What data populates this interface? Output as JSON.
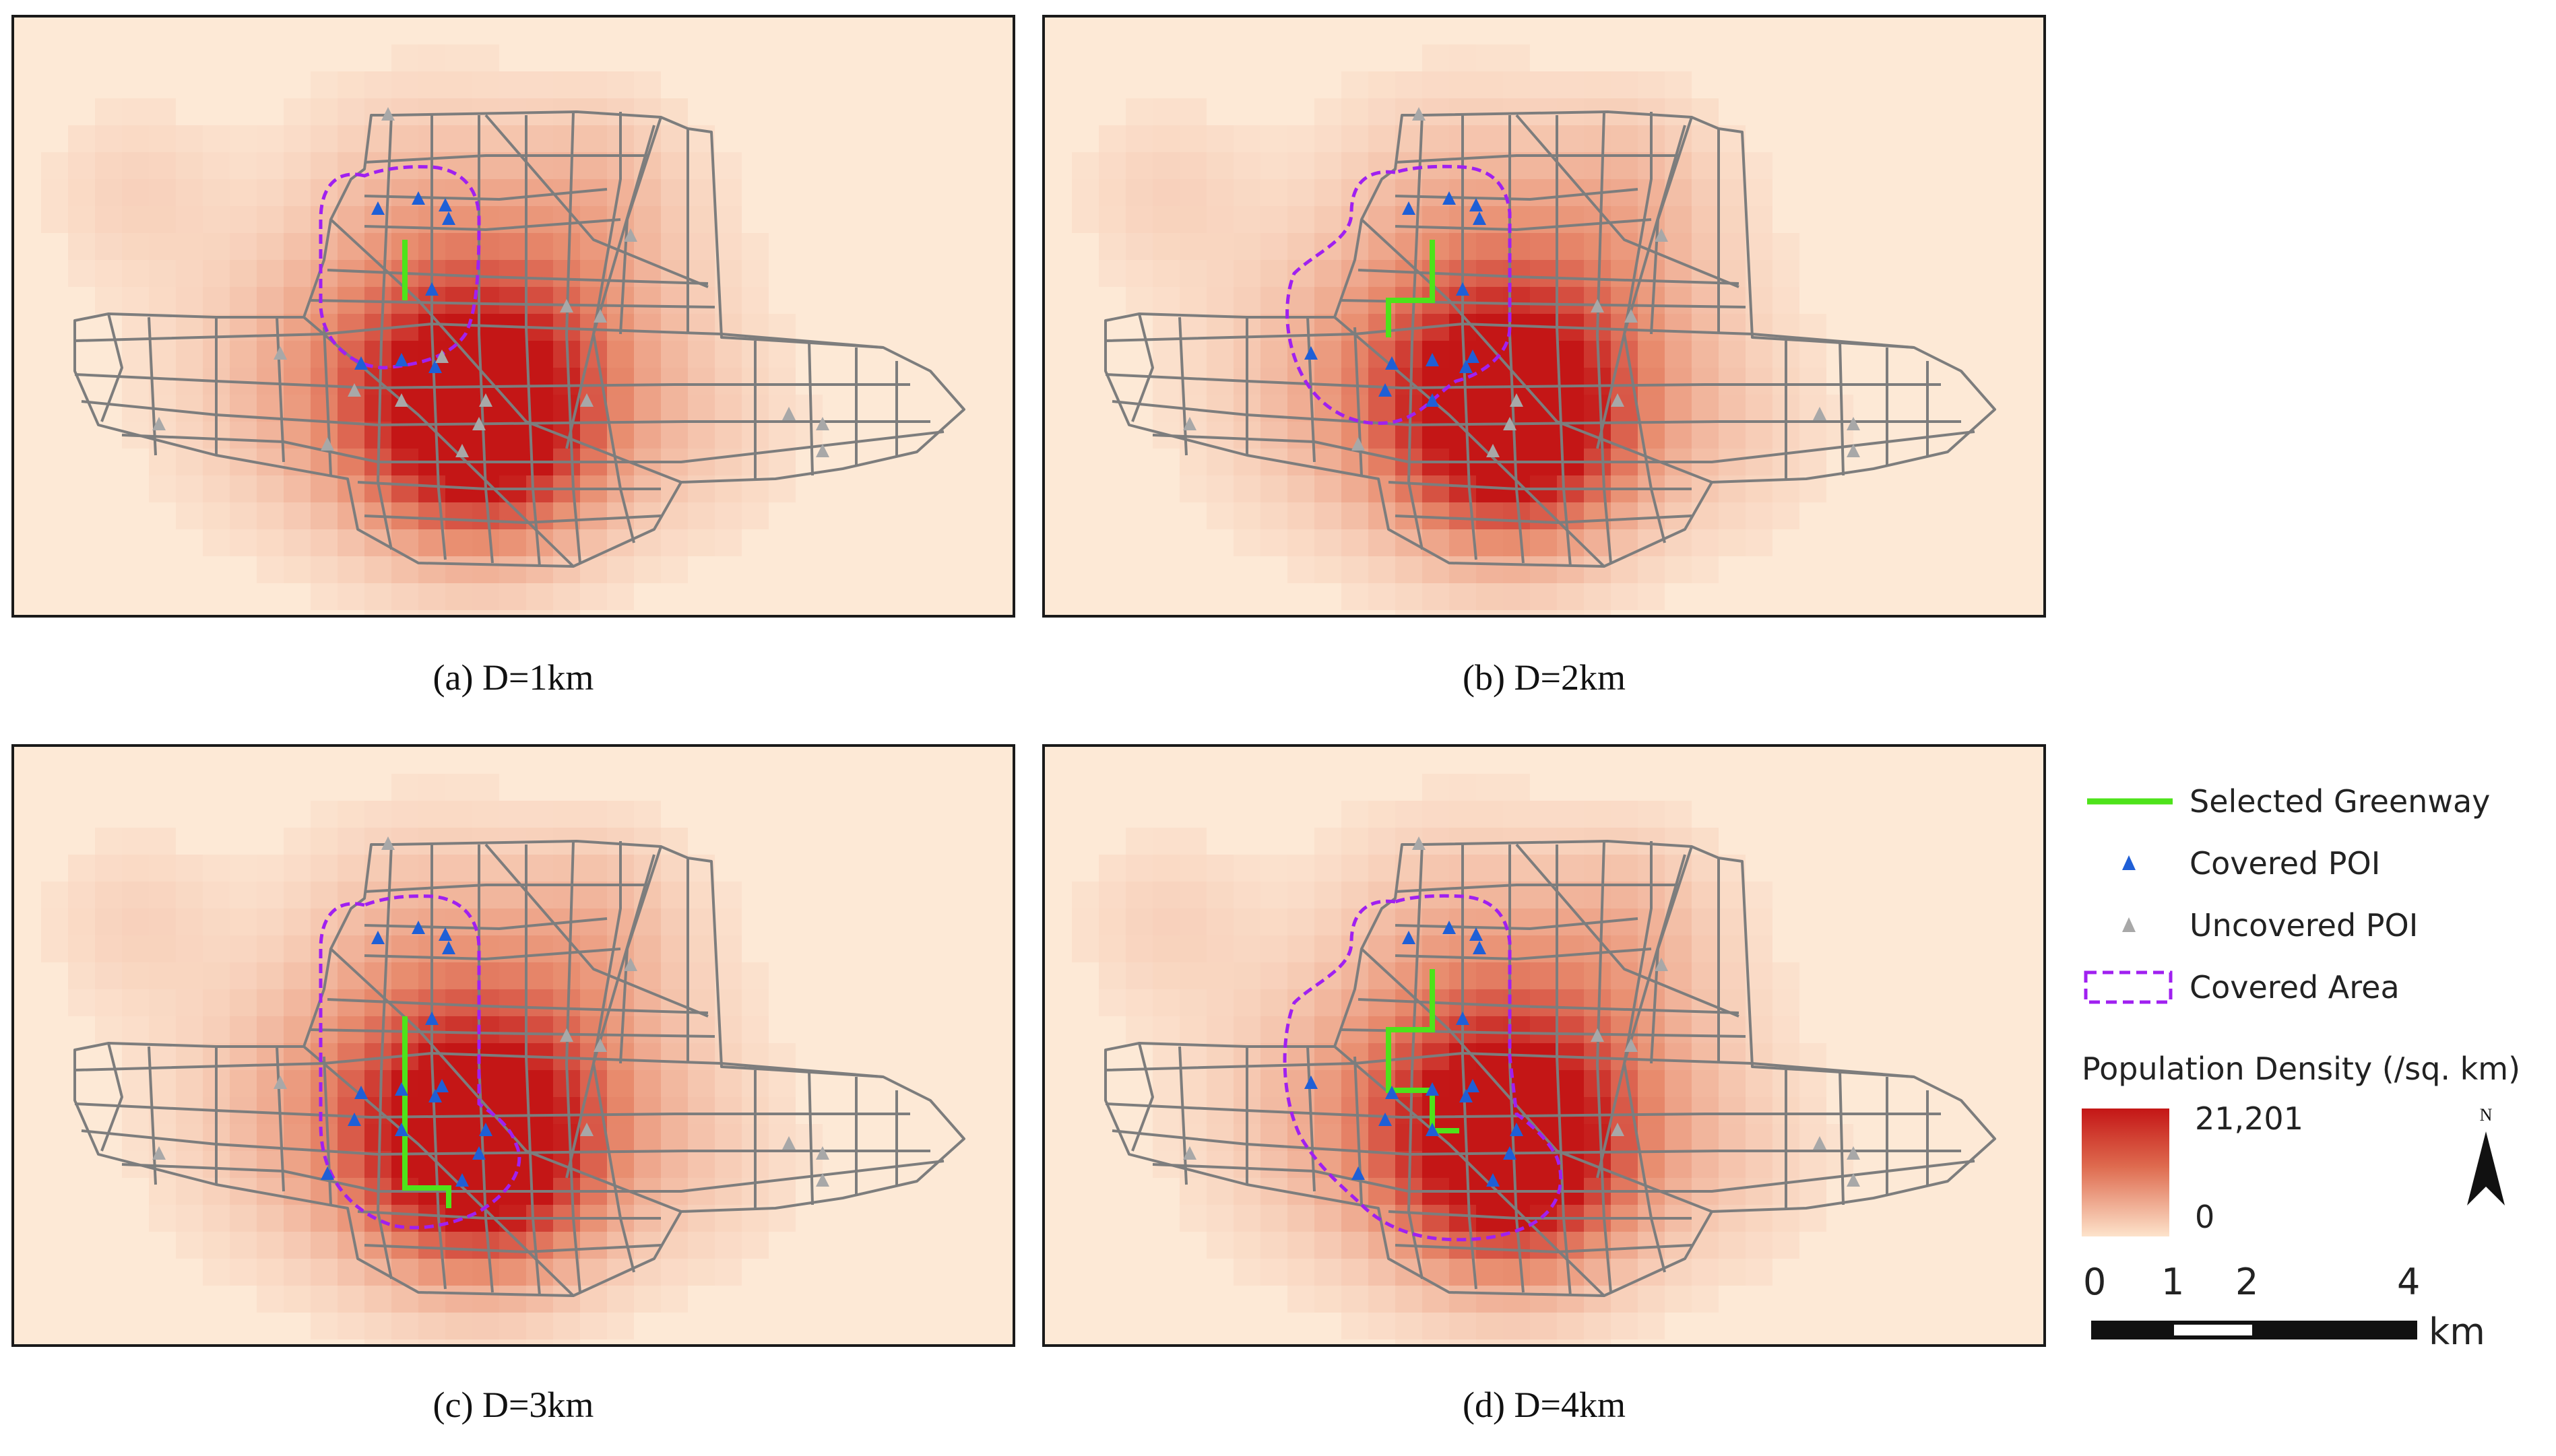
{
  "panels": [
    {
      "id": "a",
      "caption": "(a) D=1km"
    },
    {
      "id": "b",
      "caption": "(b) D=2km"
    },
    {
      "id": "c",
      "caption": "(c) D=3km"
    },
    {
      "id": "d",
      "caption": "(d) D=4km"
    }
  ],
  "legend": {
    "greenway_label": "Selected Greenway",
    "covered_poi_label": "Covered POI",
    "uncovered_poi_label": "Uncovered POI",
    "covered_area_label": "Covered Area",
    "density_title": "Population Density (/sq. km)",
    "density_max": "21,201",
    "density_min": "0",
    "north_label": "N",
    "scale_ticks": [
      "0",
      "1",
      "2",
      "4"
    ],
    "scale_unit": "km"
  },
  "colors": {
    "greenway": "#4ee31a",
    "covered_poi": "#1f5fd6",
    "uncovered_poi": "#a8a8a8",
    "covered_area": "#a020f0",
    "road": "#7d7d7d",
    "density_high": "#c41616",
    "density_low": "#fde9d6"
  }
}
